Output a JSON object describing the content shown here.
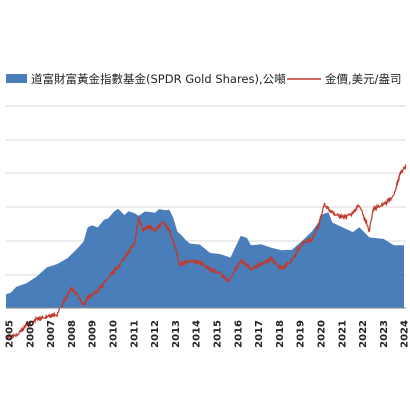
{
  "chart_data": {
    "type": "area",
    "title": "",
    "grid": true,
    "legend_placement": "top",
    "x_tick_labels": [
      "2005",
      "2006",
      "2007",
      "2008",
      "2009",
      "2010",
      "2011",
      "2012",
      "2013",
      "2014",
      "2015",
      "2016",
      "2017",
      "2018",
      "2019",
      "2020",
      "2021",
      "2022",
      "2023",
      "2024"
    ],
    "series": [
      {
        "name": "道富財富黃金指數基金(SPDR Gold Shares),公噸",
        "kind": "area",
        "color": "#4a7ebb",
        "x": [
          2005.0,
          2005.25,
          2005.5,
          2006.0,
          2006.5,
          2007.0,
          2007.5,
          2008.0,
          2008.5,
          2008.8,
          2009.0,
          2009.2,
          2009.5,
          2009.8,
          2010.0,
          2010.3,
          2010.5,
          2010.8,
          2011.0,
          2011.3,
          2011.5,
          2011.8,
          2012.0,
          2012.3,
          2012.5,
          2012.8,
          2013.0,
          2013.2,
          2013.4,
          2013.6,
          2013.8,
          2014.0,
          2014.5,
          2015.0,
          2015.5,
          2016.0,
          2016.2,
          2016.5,
          2016.8,
          2017.0,
          2017.5,
          2018.0,
          2018.5,
          2018.8,
          2019.0,
          2019.5,
          2020.0,
          2020.3,
          2020.5,
          2020.8,
          2021.0,
          2021.5,
          2022.0,
          2022.3,
          2022.5,
          2022.8,
          2023.0,
          2023.5,
          2024.0,
          2024.5
        ],
        "y": [
          180,
          220,
          260,
          340,
          420,
          520,
          600,
          650,
          780,
          900,
          1050,
          1100,
          1080,
          1150,
          1200,
          1280,
          1300,
          1250,
          1270,
          1250,
          1240,
          1260,
          1280,
          1270,
          1290,
          1310,
          1300,
          1180,
          1030,
          950,
          900,
          870,
          820,
          740,
          720,
          650,
          800,
          950,
          920,
          850,
          830,
          800,
          780,
          750,
          780,
          890,
          1000,
          1150,
          1230,
          1260,
          1150,
          1050,
          1010,
          1080,
          1000,
          950,
          930,
          900,
          850,
          820
        ]
      },
      {
        "name": "金價,美元/盎司",
        "kind": "line",
        "color": "#c0392b",
        "x": [
          2005.0,
          2005.5,
          2006.0,
          2006.5,
          2007.0,
          2007.5,
          2008.0,
          2008.2,
          2008.5,
          2008.8,
          2009.0,
          2009.5,
          2010.0,
          2010.5,
          2011.0,
          2011.3,
          2011.5,
          2011.7,
          2012.0,
          2012.3,
          2012.7,
          2013.0,
          2013.3,
          2013.5,
          2014.0,
          2014.5,
          2015.0,
          2015.5,
          2015.9,
          2016.5,
          2016.8,
          2017.0,
          2017.5,
          2018.0,
          2018.5,
          2019.0,
          2019.5,
          2020.0,
          2020.3,
          2020.6,
          2021.0,
          2021.5,
          2022.0,
          2022.3,
          2022.8,
          2023.0,
          2023.5,
          2024.0,
          2024.3,
          2024.6
        ],
        "y": [
          420,
          430,
          550,
          620,
          650,
          680,
          900,
          980,
          900,
          780,
          870,
          950,
          1100,
          1230,
          1400,
          1500,
          1800,
          1650,
          1700,
          1650,
          1750,
          1650,
          1450,
          1250,
          1300,
          1280,
          1200,
          1150,
          1060,
          1300,
          1250,
          1200,
          1260,
          1320,
          1200,
          1300,
          1500,
          1550,
          1700,
          1950,
          1850,
          1800,
          1850,
          1950,
          1650,
          1900,
          1950,
          2050,
          2300,
          2400
        ]
      }
    ]
  }
}
